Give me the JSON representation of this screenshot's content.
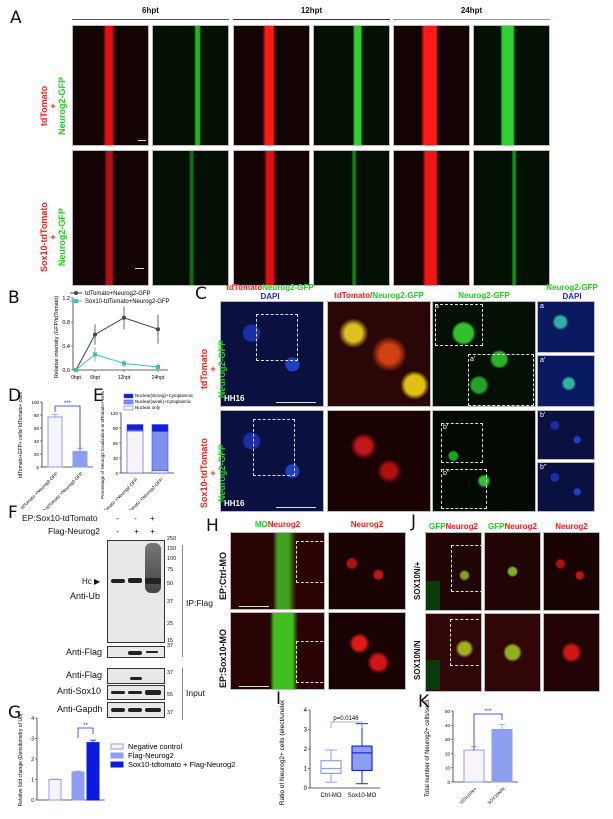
{
  "panels": {
    "A": "A",
    "B": "B",
    "C": "C",
    "D": "D",
    "E": "E",
    "F": "F",
    "G": "G",
    "H": "H",
    "I": "I",
    "J": "J",
    "K": "K"
  },
  "a": {
    "times": [
      "6hpt",
      "12hpt",
      "24hpt"
    ],
    "row1": [
      "tdTomato",
      "+",
      "Neurog2-GFP"
    ],
    "row2": [
      "Sox10-tdTomato",
      "+",
      "Neurog2-GFP"
    ]
  },
  "c": {
    "h1a": "tdTomato",
    "h1b": "Neurog2-GFP",
    "h1c": "DAPI",
    "h2a": "tdTomato/",
    "h2b": "Neurog2-GFP",
    "h3": "Neurog2-GFP",
    "h4a": "Neurog2-GFP",
    "h4b": "DAPI",
    "stage": "HH16",
    "insets": [
      "a",
      "a'",
      "a",
      "a'",
      "b'",
      "b''",
      "b'",
      "b''"
    ]
  },
  "f": {
    "ep": "EP:Sox10-tdTomato",
    "flag": "Flag-Neurog2",
    "ep_signs": [
      "-",
      "-",
      "+"
    ],
    "flag_signs": [
      "-",
      "+",
      "+"
    ],
    "hc": "Hc",
    "anti_ub": "Anti-Ub",
    "anti_flag_ip": "Anti-Flag",
    "anti_flag_in": "Anti-Flag",
    "anti_sox10": "Anti-Sox10",
    "anti_gapdh": "Anti-Gapdh",
    "ip": "IP:Flag",
    "input": "Input",
    "markers_ub": [
      "250",
      "150",
      "100",
      "75",
      "50",
      "37",
      "25",
      "15"
    ],
    "marker_flag_ip": "37",
    "markers_input": [
      "37",
      "55",
      "37"
    ]
  },
  "h": {
    "hdr_a": "MO",
    "hdr_b": "Neurog2",
    "hdr2": "Neurog2",
    "rows": [
      "EP:Ctrl-MO",
      "EP:Sox10-MO"
    ]
  },
  "j": {
    "hdr_a": "GFP",
    "hdr_b": "Neurog2",
    "hdr2a": "GFP",
    "hdr2b": "Neurog2",
    "hdr3": "Neurog2",
    "rows": [
      "SOX10N/+",
      "SOX10N/N"
    ]
  },
  "colors": {
    "red": "#ff1a1a",
    "green": "#19d419",
    "blue": "#1a2bdc",
    "light_blue": "#8e9ef0",
    "dark_blue": "#0a1adf"
  },
  "chart_data": [
    {
      "id": "B",
      "type": "line",
      "ylabel": "Relative intensity (GFP/tdTomato)",
      "categories": [
        "0hpt",
        "6hpt",
        "12hpt",
        "24hpt"
      ],
      "ylim": [
        0,
        1.2
      ],
      "yticks": [
        "0.0",
        "0.4",
        "0.8",
        "1.2"
      ],
      "legend": "top-left",
      "series": [
        {
          "name": "tdTomato+Neurog2-GFP",
          "values": [
            0,
            0.59,
            0.87,
            0.68
          ],
          "errors": [
            0,
            0.17,
            0.19,
            0.24
          ],
          "color": "#444444"
        },
        {
          "name": "Sox10-tdTomato+Neurog2-GFP",
          "values": [
            0,
            0.26,
            0.11,
            0.05
          ],
          "errors": [
            0,
            0.12,
            0.06,
            0.07
          ],
          "color": "#3ec0b0"
        }
      ]
    },
    {
      "id": "D",
      "type": "bar",
      "ylabel": "tdTomato+GFP+ cells/ tdTomato+ cells",
      "categories": [
        "tdTomato +Neurog2-GFP",
        "Sox10-tdTomato +Neurog2-GFP"
      ],
      "values": [
        77,
        24
      ],
      "errors": [
        4,
        5
      ],
      "ylim": [
        0,
        100
      ],
      "yticks": [
        "0",
        "20",
        "40",
        "60",
        "80",
        "100"
      ],
      "significance": "***"
    },
    {
      "id": "E",
      "type": "bar",
      "stacked": true,
      "ylabel": "Percentage of Neurog2 localization in tdTomato+ cells",
      "categories": [
        "tdTomato +Neurog2-GFP",
        "Sox10-tdTomato +Neurog2-GFP"
      ],
      "ylim": [
        0,
        120
      ],
      "yticks": [
        "0",
        "30",
        "60",
        "90",
        "120"
      ],
      "legend": "top",
      "series": [
        {
          "name": "Nuclear only",
          "values": [
            84,
            5
          ],
          "color": "#f8f4fb"
        },
        {
          "name": "Nuclear(weak)+Cytoplasmic",
          "values": [
            2,
            78
          ],
          "color": "#7f90ef"
        },
        {
          "name": "Nuclear(strong)+Cytoplasmic",
          "values": [
            11,
            14
          ],
          "color": "#1020d8"
        }
      ]
    },
    {
      "id": "G",
      "type": "bar",
      "ylabel": "Relative fold change (Densitometry of Ub)",
      "categories": [
        "Negative control",
        "Flag-Neurog2",
        "Sox10-tdtomato + Flag-Neurog2"
      ],
      "values": [
        1.0,
        1.37,
        2.8
      ],
      "errors": [
        0.02,
        0.04,
        0.12
      ],
      "colors": [
        "#f8f4fb",
        "#8e9ef0",
        "#0a1adf"
      ],
      "ylim": [
        0,
        4
      ],
      "yticks": [
        "0",
        "1",
        "2",
        "3",
        "4"
      ],
      "significance": "**",
      "legend": "right"
    },
    {
      "id": "I",
      "type": "box",
      "ylabel": "Ratio of Neurog2+ cells (elect/unelect)",
      "categories": [
        "Ctrl-MO",
        "Sox10-MO"
      ],
      "boxes": [
        {
          "min": 0.3,
          "q1": 0.75,
          "median": 1.0,
          "q3": 1.4,
          "max": 1.95
        },
        {
          "min": 0.22,
          "q1": 0.9,
          "median": 1.8,
          "q3": 2.15,
          "max": 3.3
        }
      ],
      "ylim": [
        0,
        4
      ],
      "yticks": [
        "0",
        "1",
        "2",
        "3",
        "4"
      ],
      "annotation": "p=0.0146"
    },
    {
      "id": "K",
      "type": "bar",
      "ylabel": "Total number of Neurog2+ cells/section",
      "categories": [
        "SOX10N/+",
        "SOX10N/N"
      ],
      "values": [
        22.5,
        37
      ],
      "errors": [
        2.5,
        3.5
      ],
      "colors": [
        "#f8f4fb",
        "#8e9ef0"
      ],
      "ylim": [
        0,
        50
      ],
      "yticks": [
        "0",
        "10",
        "20",
        "30",
        "40",
        "50"
      ],
      "significance": "***"
    }
  ]
}
